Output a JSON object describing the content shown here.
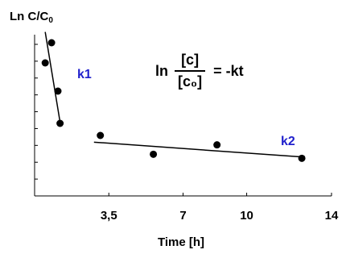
{
  "chart_data": {
    "type": "scatter",
    "ylabel_main": "Ln C/C",
    "ylabel_sub": "0",
    "xlabel": "Time [h]",
    "x_ticks": [
      {
        "value": 3.5,
        "label": "3,5"
      },
      {
        "value": 7,
        "label": "7"
      },
      {
        "value": 10,
        "label": "10"
      },
      {
        "value": 14,
        "label": "14"
      }
    ],
    "xlim": [
      0,
      14
    ],
    "ylim": [
      -6,
      0
    ],
    "y_tick_count": 9,
    "grid": false,
    "series": [
      {
        "points": [
          {
            "x": 0.5,
            "y": -1.05
          },
          {
            "x": 0.8,
            "y": -0.3
          },
          {
            "x": 1.1,
            "y": -2.1
          },
          {
            "x": 1.2,
            "y": -3.3
          },
          {
            "x": 3.1,
            "y": -3.75
          },
          {
            "x": 5.6,
            "y": -4.45
          },
          {
            "x": 8.6,
            "y": -4.1
          },
          {
            "x": 12.6,
            "y": -4.6
          }
        ]
      }
    ],
    "fit_lines": [
      {
        "label": "k1",
        "from": {
          "x": 0.5,
          "y": 0.1
        },
        "to": {
          "x": 1.2,
          "y": -3.25
        }
      },
      {
        "label": "k2",
        "from": {
          "x": 2.8,
          "y": -4.0
        },
        "to": {
          "x": 12.6,
          "y": -4.55
        }
      }
    ],
    "annotations": {
      "equation_ln": "ln",
      "equation_num": "[c]",
      "equation_den": "[c₀]",
      "equation_rhs": "= -kt",
      "k1": "k1",
      "k2": "k2"
    },
    "colors": {
      "points": "#000000",
      "lines": "#000000",
      "k_labels": "#1f1fcc"
    }
  }
}
